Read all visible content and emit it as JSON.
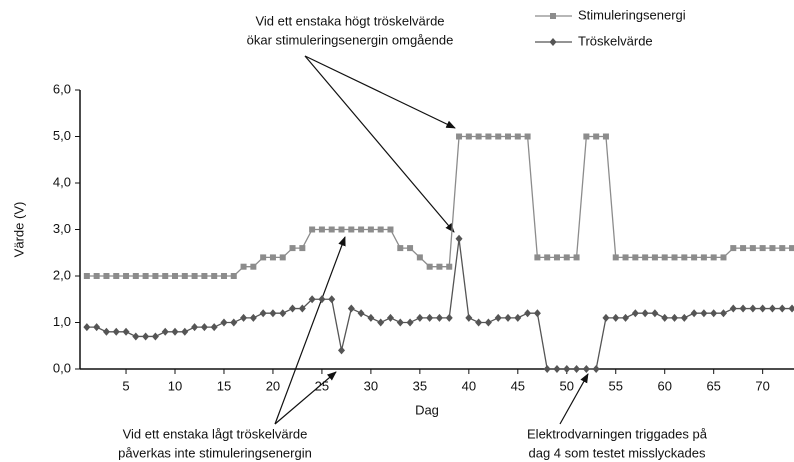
{
  "chart_data": {
    "type": "line",
    "x_label": "Dag",
    "y_label": "Värde (V)",
    "x": [
      1,
      2,
      3,
      4,
      5,
      6,
      7,
      8,
      9,
      10,
      11,
      12,
      13,
      14,
      15,
      16,
      17,
      18,
      19,
      20,
      21,
      22,
      23,
      24,
      25,
      26,
      27,
      28,
      29,
      30,
      31,
      32,
      33,
      34,
      35,
      36,
      37,
      38,
      39,
      40,
      41,
      42,
      43,
      44,
      45,
      46,
      47,
      48,
      49,
      50,
      51,
      52,
      53,
      54,
      55,
      56,
      57,
      58,
      59,
      60,
      61,
      62,
      63,
      64,
      65,
      66,
      67,
      68,
      69,
      70,
      71,
      72,
      73
    ],
    "series": [
      {
        "name": "Stimuleringsenergi",
        "color": "#8c8c8c",
        "marker": "square",
        "values": [
          2.0,
          2.0,
          2.0,
          2.0,
          2.0,
          2.0,
          2.0,
          2.0,
          2.0,
          2.0,
          2.0,
          2.0,
          2.0,
          2.0,
          2.0,
          2.0,
          2.2,
          2.2,
          2.4,
          2.4,
          2.4,
          2.6,
          2.6,
          3.0,
          3.0,
          3.0,
          3.0,
          3.0,
          3.0,
          3.0,
          3.0,
          3.0,
          2.6,
          2.6,
          2.4,
          2.2,
          2.2,
          2.2,
          5.0,
          5.0,
          5.0,
          5.0,
          5.0,
          5.0,
          5.0,
          5.0,
          2.4,
          2.4,
          2.4,
          2.4,
          2.4,
          5.0,
          5.0,
          5.0,
          2.4,
          2.4,
          2.4,
          2.4,
          2.4,
          2.4,
          2.4,
          2.4,
          2.4,
          2.4,
          2.4,
          2.4,
          2.6,
          2.6,
          2.6,
          2.6,
          2.6,
          2.6,
          2.6
        ]
      },
      {
        "name": "Tröskelvärde",
        "color": "#555555",
        "marker": "diamond",
        "values": [
          0.9,
          0.9,
          0.8,
          0.8,
          0.8,
          0.7,
          0.7,
          0.7,
          0.8,
          0.8,
          0.8,
          0.9,
          0.9,
          0.9,
          1.0,
          1.0,
          1.1,
          1.1,
          1.2,
          1.2,
          1.2,
          1.3,
          1.3,
          1.5,
          1.5,
          1.5,
          0.4,
          1.3,
          1.2,
          1.1,
          1.0,
          1.1,
          1.0,
          1.0,
          1.1,
          1.1,
          1.1,
          1.1,
          2.8,
          1.1,
          1.0,
          1.0,
          1.1,
          1.1,
          1.1,
          1.2,
          1.2,
          0,
          0,
          0,
          0,
          0,
          0,
          1.1,
          1.1,
          1.1,
          1.2,
          1.2,
          1.2,
          1.1,
          1.1,
          1.1,
          1.2,
          1.2,
          1.2,
          1.2,
          1.3,
          1.3,
          1.3,
          1.3,
          1.3,
          1.3,
          1.3
        ]
      }
    ],
    "xlim": [
      0.3,
      73.2
    ],
    "xticks": [
      5,
      10,
      15,
      20,
      25,
      30,
      35,
      40,
      45,
      50,
      55,
      60,
      65,
      70
    ],
    "ylim": [
      0,
      6
    ],
    "yticks": [
      {
        "value": 0,
        "label": "0,0"
      },
      {
        "value": 1,
        "label": "1,0"
      },
      {
        "value": 2,
        "label": "2,0"
      },
      {
        "value": 3,
        "label": "3,0"
      },
      {
        "value": 4,
        "label": "4,0"
      },
      {
        "value": 5,
        "label": "5,0"
      },
      {
        "value": 6,
        "label": "6,0"
      }
    ],
    "annotations": [
      {
        "lines": [
          "Vid ett enstaka högt tröskelvärde",
          "ökar stimuleringsenergin omgående"
        ]
      },
      {
        "lines": [
          "Vid ett enstaka lågt tröskelvärde",
          "påverkas inte stimuleringsenergin"
        ]
      },
      {
        "lines": [
          "Elektrodvarningen triggades på",
          "dag 4 som testet misslyckades"
        ]
      }
    ]
  }
}
